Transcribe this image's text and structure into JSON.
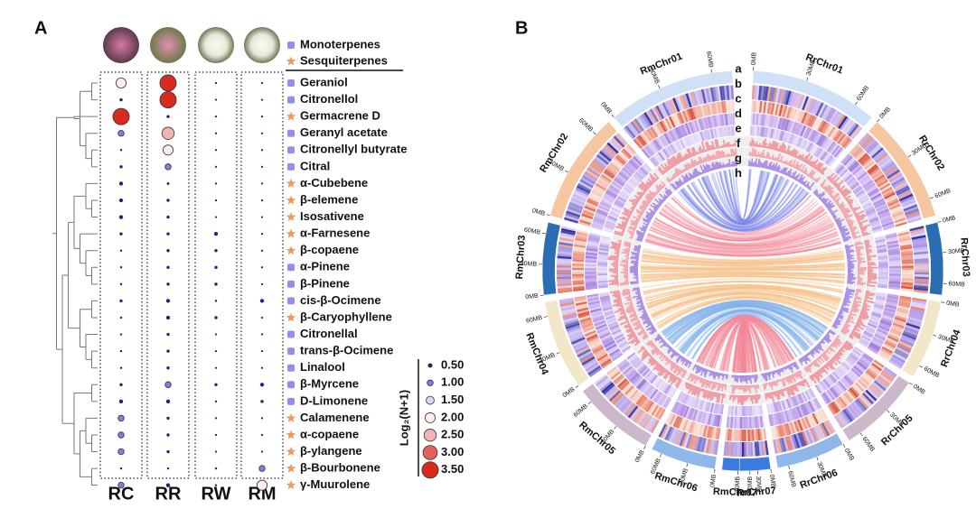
{
  "panel_a": {
    "label": "A",
    "groups": [
      {
        "name": "Monoterpenes",
        "color": "#8f90ee"
      },
      {
        "name": "Sesquiterpenes",
        "color": "#ef9a5c"
      }
    ],
    "columns": [
      "RC",
      "RR",
      "RW",
      "RM"
    ],
    "compounds": [
      {
        "name": "Geraniol",
        "group": 0,
        "values": [
          2.0,
          3.5,
          0.05,
          0.05
        ]
      },
      {
        "name": "Citronellol",
        "group": 0,
        "values": [
          0.3,
          3.5,
          0.05,
          0.05
        ]
      },
      {
        "name": "Germacrene D",
        "group": 1,
        "values": [
          3.5,
          0.3,
          0.05,
          0.05
        ]
      },
      {
        "name": "Geranyl acetate",
        "group": 0,
        "values": [
          1.0,
          2.5,
          0.05,
          0.05
        ]
      },
      {
        "name": "Citronellyl butyrate",
        "group": 0,
        "values": [
          0.1,
          2.0,
          0.05,
          0.05
        ]
      },
      {
        "name": "Citral",
        "group": 0,
        "values": [
          0.3,
          1.0,
          0.05,
          0.05
        ]
      },
      {
        "name": "α-Cubebene",
        "group": 1,
        "values": [
          0.5,
          0.2,
          0.05,
          0.05
        ]
      },
      {
        "name": "β-elemene",
        "group": 1,
        "values": [
          0.5,
          0.3,
          0.05,
          0.05
        ]
      },
      {
        "name": "Isosativene",
        "group": 1,
        "values": [
          0.5,
          0.3,
          0.05,
          0.05
        ]
      },
      {
        "name": "α-Farnesene",
        "group": 1,
        "values": [
          0.3,
          0.3,
          0.5,
          0.05
        ]
      },
      {
        "name": "β-copaene",
        "group": 1,
        "values": [
          0.1,
          0.3,
          0.3,
          0.05
        ]
      },
      {
        "name": "α-Pinene",
        "group": 0,
        "values": [
          0.1,
          0.3,
          0.3,
          0.05
        ]
      },
      {
        "name": "β-Pinene",
        "group": 0,
        "values": [
          0.1,
          0.3,
          0.3,
          0.05
        ]
      },
      {
        "name": "cis-β-Ocimene",
        "group": 0,
        "values": [
          0.3,
          0.5,
          0.1,
          0.5
        ]
      },
      {
        "name": "β-Caryophyllene",
        "group": 1,
        "values": [
          0.1,
          0.5,
          0.3,
          0.05
        ]
      },
      {
        "name": "Citronellal",
        "group": 0,
        "values": [
          0.1,
          0.3,
          0.05,
          0.05
        ]
      },
      {
        "name": "trans-β-Ocimene",
        "group": 0,
        "values": [
          0.1,
          0.3,
          0.05,
          0.05
        ]
      },
      {
        "name": "Linalool",
        "group": 0,
        "values": [
          0.1,
          0.3,
          0.05,
          0.05
        ]
      },
      {
        "name": "β-Myrcene",
        "group": 0,
        "values": [
          0.3,
          1.0,
          0.3,
          0.5
        ]
      },
      {
        "name": "D-Limonene",
        "group": 0,
        "values": [
          0.5,
          0.5,
          0.1,
          0.3
        ]
      },
      {
        "name": "Calamenene",
        "group": 1,
        "values": [
          1.0,
          0.3,
          0.05,
          0.05
        ]
      },
      {
        "name": "α-copaene",
        "group": 1,
        "values": [
          1.0,
          0.3,
          0.05,
          0.05
        ]
      },
      {
        "name": "β-ylangene",
        "group": 1,
        "values": [
          1.0,
          0.3,
          0.05,
          0.05
        ]
      },
      {
        "name": "β-Bourbonene",
        "group": 1,
        "values": [
          0.1,
          0.1,
          0.1,
          1.0
        ]
      },
      {
        "name": "γ-Muurolene",
        "group": 1,
        "values": [
          1.0,
          0.5,
          0.1,
          2.0
        ]
      }
    ],
    "legend": {
      "title": "Log₂(N+1)",
      "entries": [
        {
          "value": 0.5,
          "label": "0.50",
          "color": "#1c1f8e"
        },
        {
          "value": 1.0,
          "label": "1.00",
          "color": "#7c80e2"
        },
        {
          "value": 1.5,
          "label": "1.50",
          "color": "#d9d9f6"
        },
        {
          "value": 2.0,
          "label": "2.00",
          "color": "#fcecec"
        },
        {
          "value": 2.5,
          "label": "2.50",
          "color": "#f3b3b3"
        },
        {
          "value": 3.0,
          "label": "3.00",
          "color": "#e5605e"
        },
        {
          "value": 3.5,
          "label": "3.50",
          "color": "#d82b20"
        }
      ]
    }
  },
  "panel_b": {
    "label": "B",
    "tracks": [
      "a",
      "b",
      "c",
      "d",
      "e",
      "f",
      "g",
      "h"
    ],
    "chromosomes": [
      {
        "name": "RmChr01",
        "ticks": [
          "0MB",
          "30MB",
          "60MB"
        ]
      },
      {
        "name": "RmChr02",
        "ticks": [
          "0MB",
          "30MB",
          "60MB"
        ]
      },
      {
        "name": "RmChr03",
        "ticks": [
          "0MB",
          "30MB",
          "60MB"
        ]
      },
      {
        "name": "RmChr04",
        "ticks": [
          "0MB",
          "30MB",
          "60MB"
        ]
      },
      {
        "name": "RmChr05",
        "ticks": [
          "0MB",
          "30MB",
          "60MB"
        ]
      },
      {
        "name": "RmChr06",
        "ticks": [
          "0MB",
          "30MB",
          "60MB"
        ]
      },
      {
        "name": "RmChr07",
        "ticks": [
          "0MB",
          "30MB"
        ]
      },
      {
        "name": "RrChr01",
        "ticks": [
          "0MB",
          "30MB",
          "60MB"
        ]
      },
      {
        "name": "RrChr02",
        "ticks": [
          "0MB",
          "30MB",
          "60MB"
        ]
      },
      {
        "name": "RrChr03",
        "ticks": [
          "0MB",
          "30MB",
          "60MB"
        ]
      },
      {
        "name": "RrChr04",
        "ticks": [
          "0MB",
          "30MB",
          "60MB"
        ]
      },
      {
        "name": "RrChr05",
        "ticks": [
          "0MB",
          "30MB",
          "60MB"
        ]
      },
      {
        "name": "RrChr06",
        "ticks": [
          "0MB",
          "30MB",
          "60MB"
        ]
      },
      {
        "name": "RrChr07",
        "ticks": [
          "0MB",
          "30MB"
        ]
      }
    ]
  }
}
